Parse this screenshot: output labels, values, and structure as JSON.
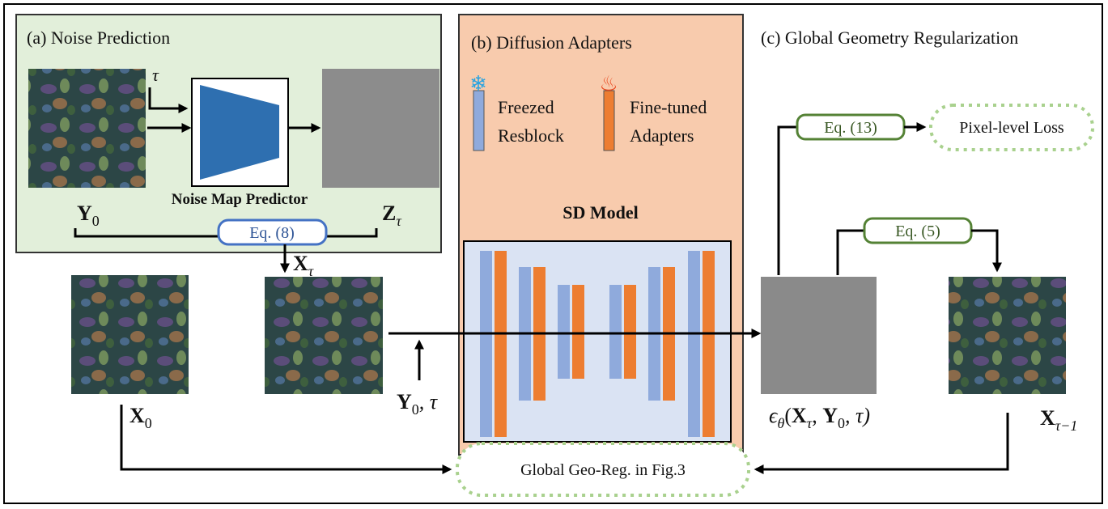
{
  "panels": {
    "noise_prediction": {
      "title": "(a) Noise Prediction",
      "tau": "τ",
      "predictor": "Noise Map Predictor",
      "y0": [
        {
          "text": "Y",
          "bold": true
        },
        {
          "text": "0",
          "sub": true
        }
      ],
      "z_tau": [
        {
          "text": "Z",
          "bold": true
        },
        {
          "text": "τ",
          "sub": true
        }
      ],
      "equation": "Eq. (8)"
    },
    "diffusion_adapters": {
      "title": "(b) Diffusion Adapters",
      "frozen": [
        "Freezed",
        "Resblock"
      ],
      "tuned": [
        "Fine-tuned",
        "Adapters"
      ],
      "model": "SD Model"
    },
    "geometry": {
      "title": "(c) Global Geometry Regularization",
      "eq13": "Eq. (13)",
      "pixel_loss": "Pixel-level Loss",
      "eq5": "Eq. (5)",
      "global_reg": "Global Geo-Reg. in Fig.3"
    }
  },
  "labels": {
    "x_tau": [
      {
        "text": "X",
        "bold": true
      },
      {
        "text": "τ",
        "sub": true
      }
    ],
    "x0": [
      {
        "text": "X",
        "bold": true
      },
      {
        "text": "0",
        "sub": true
      }
    ],
    "cond": [
      {
        "text": "Y",
        "bold": true
      },
      {
        "text": "0",
        "sub": true
      },
      {
        "text": ", τ"
      }
    ],
    "eps": [
      {
        "text": "ϵ"
      },
      {
        "text": "θ",
        "sub": true
      },
      {
        "text": "("
      },
      {
        "text": "X",
        "bold": true
      },
      {
        "text": "τ",
        "sub": true
      },
      {
        "text": ", "
      },
      {
        "text": "Y",
        "bold": true
      },
      {
        "text": "0",
        "sub": true
      },
      {
        "text": ", τ)"
      }
    ],
    "x_prev": [
      {
        "text": "X",
        "bold": true
      },
      {
        "text": "τ−1",
        "sub": true
      }
    ]
  }
}
